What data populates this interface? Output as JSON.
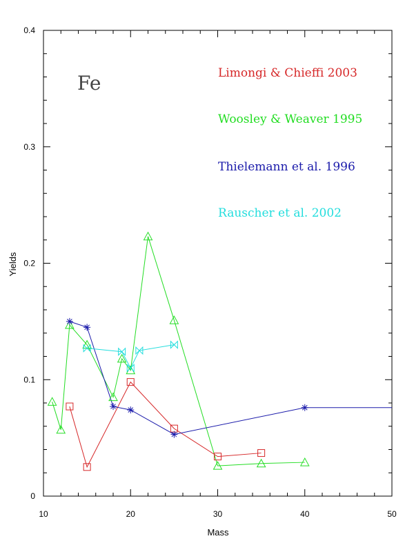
{
  "chart_data": {
    "type": "line",
    "title": "",
    "annotation": "Fe",
    "xlabel": "Mass",
    "ylabel": "Yields",
    "xlim": [
      10,
      50
    ],
    "ylim": [
      0,
      0.4
    ],
    "xticks": [
      "10",
      "20",
      "30",
      "40",
      "50"
    ],
    "yticks": [
      "0",
      "0.1",
      "0.2",
      "0.3",
      "0.4"
    ],
    "grid": false,
    "legend_position": "top-right",
    "series": [
      {
        "name": "Limongi & Chieffi 2003",
        "color": "#d62728",
        "marker": "square",
        "x": [
          13,
          15,
          20,
          25,
          30,
          35
        ],
        "y": [
          0.077,
          0.025,
          0.098,
          0.058,
          0.034,
          0.037
        ]
      },
      {
        "name": "Woosley & Weaver 1995",
        "color": "#22dd22",
        "marker": "triangle",
        "x": [
          11,
          12,
          13,
          15,
          18,
          19,
          20,
          22,
          25,
          30,
          35,
          40
        ],
        "y": [
          0.081,
          0.057,
          0.147,
          0.13,
          0.085,
          0.118,
          0.108,
          0.223,
          0.151,
          0.026,
          0.028,
          0.029
        ]
      },
      {
        "name": "Thielemann et al. 1996",
        "color": "#1a1aaa",
        "marker": "star",
        "x": [
          13,
          15,
          18,
          20,
          25,
          40,
          50
        ],
        "y": [
          0.15,
          0.145,
          0.077,
          0.074,
          0.053,
          0.076,
          0.076
        ]
      },
      {
        "name": "Rauscher et al. 2002",
        "color": "#22dddd",
        "marker": "bowtie",
        "x": [
          15,
          19,
          20,
          21,
          25
        ],
        "y": [
          0.127,
          0.124,
          0.11,
          0.125,
          0.13
        ]
      }
    ]
  }
}
